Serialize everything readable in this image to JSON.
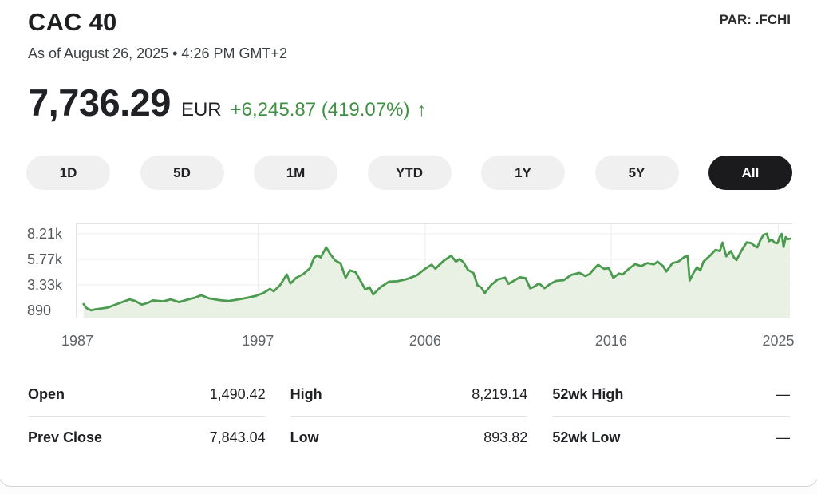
{
  "header": {
    "title": "CAC 40",
    "symbol": "PAR: .FCHI",
    "as_of": "As of August 26, 2025 • 4:26 PM GMT+2"
  },
  "quote": {
    "price": "7,736.29",
    "currency": "EUR",
    "change": "+6,245.87 (419.07%)",
    "direction_icon": "↑",
    "up_color": "#3e9142"
  },
  "ranges": {
    "options": [
      "1D",
      "5D",
      "1M",
      "YTD",
      "1Y",
      "5Y",
      "All"
    ],
    "active": "All"
  },
  "chart_data": {
    "type": "area",
    "description": "CAC 40 index level, all time (1987-2025)",
    "line_color": "#4b9b4f",
    "fill_color": "#e9f0e4",
    "grid_color": "#ececec",
    "border_color": "#e3e3e3",
    "x_range": [
      1987.2,
      2025.75
    ],
    "x_ticks": [
      {
        "label": "1987",
        "year": 1987
      },
      {
        "label": "1997",
        "year": 1997
      },
      {
        "label": "2006",
        "year": 2006
      },
      {
        "label": "2016",
        "year": 2016
      },
      {
        "label": "2025",
        "year": 2025
      }
    ],
    "y_ticks": [
      {
        "label": "8.21k",
        "value": 8210
      },
      {
        "label": "5.77k",
        "value": 5770
      },
      {
        "label": "3.33k",
        "value": 3330
      },
      {
        "label": "890",
        "value": 890
      }
    ],
    "series": [
      {
        "name": "CAC 40",
        "points": [
          [
            1987.62,
            1490
          ],
          [
            1987.78,
            1120
          ],
          [
            1988.03,
            894
          ],
          [
            1988.25,
            1000
          ],
          [
            1988.6,
            1080
          ],
          [
            1988.95,
            1180
          ],
          [
            1989.3,
            1420
          ],
          [
            1989.75,
            1720
          ],
          [
            1990.1,
            1950
          ],
          [
            1990.4,
            1800
          ],
          [
            1990.75,
            1450
          ],
          [
            1991.05,
            1600
          ],
          [
            1991.35,
            1850
          ],
          [
            1991.9,
            1760
          ],
          [
            1992.3,
            1950
          ],
          [
            1992.75,
            1680
          ],
          [
            1993.2,
            1920
          ],
          [
            1993.6,
            2100
          ],
          [
            1993.95,
            2350
          ],
          [
            1994.35,
            2060
          ],
          [
            1994.9,
            1880
          ],
          [
            1995.4,
            1790
          ],
          [
            1995.9,
            1930
          ],
          [
            1996.4,
            2090
          ],
          [
            1996.9,
            2290
          ],
          [
            1997.3,
            2560
          ],
          [
            1997.65,
            2960
          ],
          [
            1997.85,
            2720
          ],
          [
            1998.2,
            3330
          ],
          [
            1998.55,
            4330
          ],
          [
            1998.75,
            3470
          ],
          [
            1999.05,
            4000
          ],
          [
            1999.45,
            4380
          ],
          [
            1999.8,
            4930
          ],
          [
            2000.02,
            5920
          ],
          [
            2000.2,
            6140
          ],
          [
            2000.38,
            5950
          ],
          [
            2000.67,
            6922
          ],
          [
            2000.88,
            6300
          ],
          [
            2001.15,
            5680
          ],
          [
            2001.45,
            5380
          ],
          [
            2001.72,
            4020
          ],
          [
            2001.95,
            4720
          ],
          [
            2002.25,
            4550
          ],
          [
            2002.55,
            3620
          ],
          [
            2002.78,
            2880
          ],
          [
            2003.0,
            3120
          ],
          [
            2003.2,
            2420
          ],
          [
            2003.6,
            3120
          ],
          [
            2004.05,
            3640
          ],
          [
            2004.5,
            3680
          ],
          [
            2005.0,
            3880
          ],
          [
            2005.55,
            4250
          ],
          [
            2006.0,
            4880
          ],
          [
            2006.35,
            5260
          ],
          [
            2006.55,
            4880
          ],
          [
            2007.0,
            5640
          ],
          [
            2007.4,
            6120
          ],
          [
            2007.65,
            5560
          ],
          [
            2007.85,
            5800
          ],
          [
            2008.05,
            5520
          ],
          [
            2008.3,
            4760
          ],
          [
            2008.6,
            4460
          ],
          [
            2008.82,
            3280
          ],
          [
            2009.02,
            3080
          ],
          [
            2009.2,
            2550
          ],
          [
            2009.55,
            3320
          ],
          [
            2009.9,
            3850
          ],
          [
            2010.3,
            4030
          ],
          [
            2010.48,
            3440
          ],
          [
            2010.8,
            3760
          ],
          [
            2011.1,
            4060
          ],
          [
            2011.4,
            3980
          ],
          [
            2011.65,
            3000
          ],
          [
            2011.88,
            3180
          ],
          [
            2012.12,
            3480
          ],
          [
            2012.42,
            3020
          ],
          [
            2012.72,
            3420
          ],
          [
            2013.05,
            3720
          ],
          [
            2013.45,
            3780
          ],
          [
            2013.85,
            4280
          ],
          [
            2014.3,
            4480
          ],
          [
            2014.62,
            4180
          ],
          [
            2014.85,
            4380
          ],
          [
            2015.12,
            4950
          ],
          [
            2015.3,
            5250
          ],
          [
            2015.62,
            4860
          ],
          [
            2015.88,
            4920
          ],
          [
            2016.12,
            4000
          ],
          [
            2016.42,
            4420
          ],
          [
            2016.62,
            4320
          ],
          [
            2016.95,
            4860
          ],
          [
            2017.3,
            5320
          ],
          [
            2017.62,
            5120
          ],
          [
            2017.95,
            5420
          ],
          [
            2018.3,
            5300
          ],
          [
            2018.5,
            5560
          ],
          [
            2018.8,
            5120
          ],
          [
            2018.97,
            4610
          ],
          [
            2019.3,
            5420
          ],
          [
            2019.62,
            5560
          ],
          [
            2019.95,
            6010
          ],
          [
            2020.12,
            6080
          ],
          [
            2020.23,
            3755
          ],
          [
            2020.45,
            4520
          ],
          [
            2020.62,
            5020
          ],
          [
            2020.8,
            4720
          ],
          [
            2020.97,
            5560
          ],
          [
            2021.3,
            6080
          ],
          [
            2021.62,
            6680
          ],
          [
            2021.85,
            6560
          ],
          [
            2022.0,
            7376
          ],
          [
            2022.2,
            6060
          ],
          [
            2022.45,
            6560
          ],
          [
            2022.62,
            5920
          ],
          [
            2022.75,
            5700
          ],
          [
            2023.02,
            6620
          ],
          [
            2023.3,
            7400
          ],
          [
            2023.55,
            7310
          ],
          [
            2023.72,
            7060
          ],
          [
            2023.87,
            6910
          ],
          [
            2024.02,
            7560
          ],
          [
            2024.2,
            8110
          ],
          [
            2024.38,
            8219
          ],
          [
            2024.5,
            7510
          ],
          [
            2024.65,
            7660
          ],
          [
            2024.8,
            7360
          ],
          [
            2024.95,
            7310
          ],
          [
            2025.08,
            7950
          ],
          [
            2025.18,
            8200
          ],
          [
            2025.28,
            6960
          ],
          [
            2025.4,
            7900
          ],
          [
            2025.5,
            7710
          ],
          [
            2025.62,
            7736
          ]
        ]
      }
    ]
  },
  "stats": {
    "columns": [
      {
        "rows": [
          {
            "label": "Open",
            "value": "1,490.42"
          },
          {
            "label": "Prev Close",
            "value": "7,843.04"
          }
        ]
      },
      {
        "rows": [
          {
            "label": "High",
            "value": "8,219.14"
          },
          {
            "label": "Low",
            "value": "893.82"
          }
        ]
      },
      {
        "rows": [
          {
            "label": "52wk High",
            "value": "—"
          },
          {
            "label": "52wk Low",
            "value": "—"
          }
        ]
      }
    ]
  }
}
